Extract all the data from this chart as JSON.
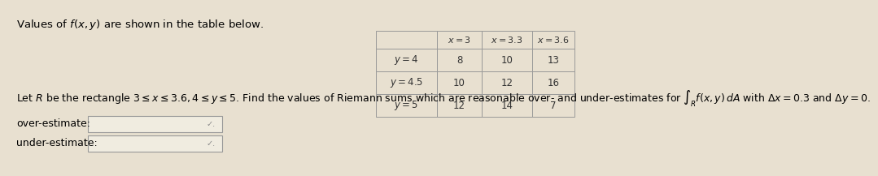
{
  "bg_color": "#e8e0d0",
  "title_text": "Values of $f(x, y)$ are shown in the table below.",
  "title_fontsize": 9.5,
  "table_col_header": [
    "",
    "$x=3$",
    "$x=3.3$",
    "$x=3.6$"
  ],
  "table_rows": [
    [
      "$y=4$",
      "8",
      "10",
      "13"
    ],
    [
      "$y=4.5$",
      "10",
      "12",
      "16"
    ],
    [
      "$y=5$",
      "12",
      "14",
      "7"
    ]
  ],
  "body_text": "Let $R$ be the rectangle $3 \\leq x \\leq 3.6, 4 \\leq y \\leq 5$. Find the values of Riemann sums which are reasonable over- and under-estimates for $\\int_R f(x,y)\\, dA$ with $\\Delta x = 0.3$ and $\\Delta y = 0.$",
  "body_fontsize": 9.0,
  "label_over": "over-estimate:",
  "label_under": "under-estimate:",
  "label_fontsize": 9.0,
  "input_box_color": "#f0ece0",
  "border_color": "#999999",
  "text_color": "#333333",
  "table_cell_fontsize": 8.5,
  "table_header_fontsize": 8.0
}
